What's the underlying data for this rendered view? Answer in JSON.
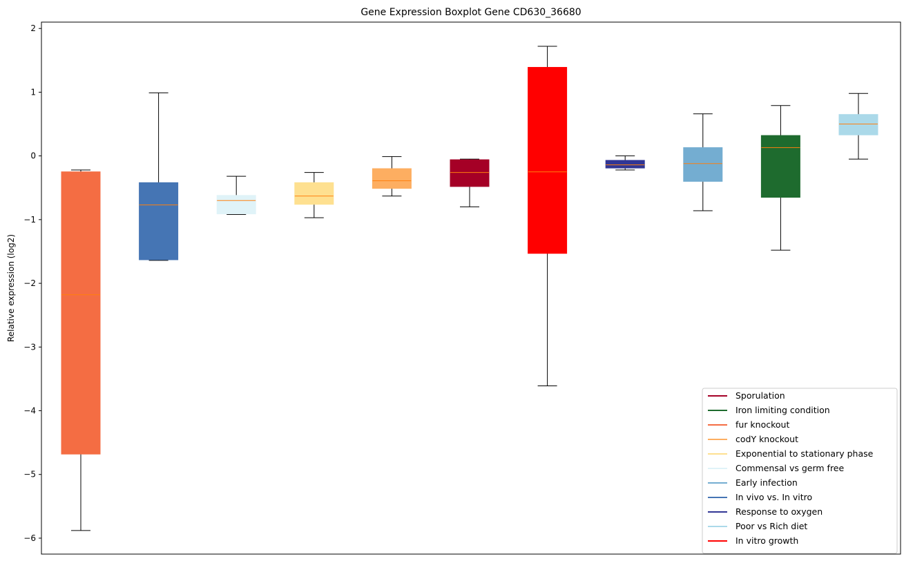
{
  "chart_data": {
    "type": "boxplot",
    "title": "Gene Expression Boxplot Gene CD630_36680",
    "xlabel": "",
    "ylabel": "Relative expression (log2)",
    "ylim": [
      -6.25,
      2.1
    ],
    "yticks": [
      -6,
      -5,
      -4,
      -3,
      -2,
      -1,
      0,
      1,
      2
    ],
    "ytick_labels": [
      "−6",
      "−5",
      "−4",
      "−3",
      "−2",
      "−1",
      "0",
      "1",
      "2"
    ],
    "grid": false,
    "legend_position": "lower-right",
    "boxes": [
      {
        "whisker_low": -5.88,
        "q1": -4.68,
        "median": -2.18,
        "q3": -0.25,
        "whisker_high": -0.22,
        "color": "#f46d43"
      },
      {
        "whisker_low": -1.64,
        "q1": -1.63,
        "median": -0.77,
        "q3": -0.42,
        "whisker_high": 0.99,
        "color": "#4575b4"
      },
      {
        "whisker_low": -0.92,
        "q1": -0.91,
        "median": -0.7,
        "q3": -0.62,
        "whisker_high": -0.32,
        "color": "#e0f3f8"
      },
      {
        "whisker_low": -0.97,
        "q1": -0.76,
        "median": -0.63,
        "q3": -0.42,
        "whisker_high": -0.26,
        "color": "#fee090"
      },
      {
        "whisker_low": -0.63,
        "q1": -0.51,
        "median": -0.39,
        "q3": -0.2,
        "whisker_high": -0.01,
        "color": "#fdae61"
      },
      {
        "whisker_low": -0.8,
        "q1": -0.48,
        "median": -0.26,
        "q3": -0.06,
        "whisker_high": -0.05,
        "color": "#a50026"
      },
      {
        "whisker_low": -3.61,
        "q1": -1.53,
        "median": -0.25,
        "q3": 1.39,
        "whisker_high": 1.72,
        "color": "#ff0000"
      },
      {
        "whisker_low": -0.22,
        "q1": -0.19,
        "median": -0.14,
        "q3": -0.07,
        "whisker_high": 0.0,
        "color": "#313695"
      },
      {
        "whisker_low": -0.86,
        "q1": -0.4,
        "median": -0.12,
        "q3": 0.13,
        "whisker_high": 0.66,
        "color": "#74add1"
      },
      {
        "whisker_low": -1.48,
        "q1": -0.65,
        "median": 0.13,
        "q3": 0.32,
        "whisker_high": 0.79,
        "color": "#1e6b2e"
      },
      {
        "whisker_low": -0.05,
        "q1": 0.33,
        "median": 0.5,
        "q3": 0.65,
        "whisker_high": 0.98,
        "color": "#abd9e9"
      }
    ],
    "median_color": "#ff7f0e",
    "legend": [
      {
        "label": "Sporulation",
        "color": "#a50026"
      },
      {
        "label": "Iron limiting condition",
        "color": "#1e6b2e"
      },
      {
        "label": "fur knockout",
        "color": "#f46d43"
      },
      {
        "label": "codY knockout",
        "color": "#fdae61"
      },
      {
        "label": "Exponential to stationary phase",
        "color": "#fee090"
      },
      {
        "label": "Commensal vs germ free",
        "color": "#e0f3f8"
      },
      {
        "label": "Early infection",
        "color": "#74add1"
      },
      {
        "label": "In vivo vs. In vitro",
        "color": "#4575b4"
      },
      {
        "label": "Response to oxygen",
        "color": "#313695"
      },
      {
        "label": "Poor vs Rich diet",
        "color": "#abd9e9"
      },
      {
        "label": "In vitro growth",
        "color": "#ff0000"
      }
    ]
  }
}
